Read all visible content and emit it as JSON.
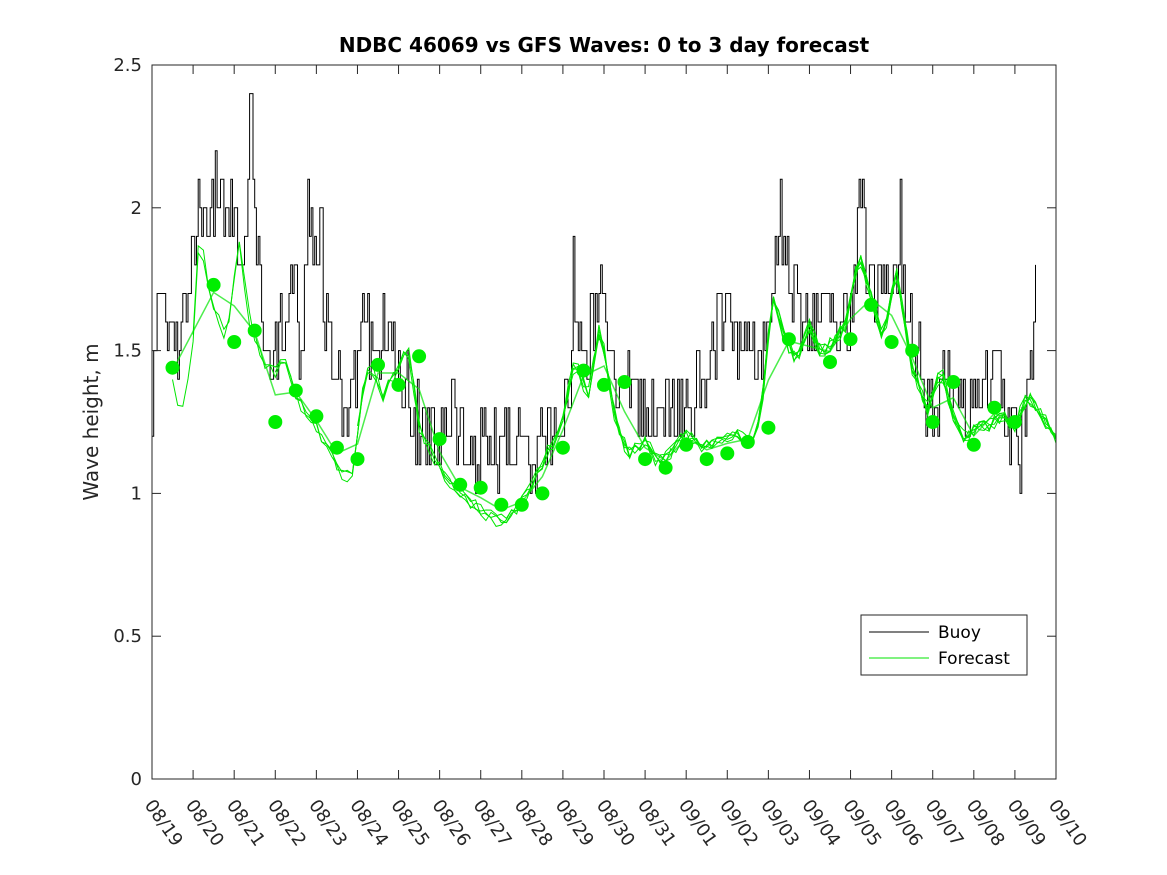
{
  "chart_data": {
    "type": "line",
    "title": "NDBC 46069 vs GFS Waves: 0 to 3 day forecast",
    "xlabel": "",
    "ylabel": "Wave height, m",
    "xlim": [
      0,
      22
    ],
    "ylim": [
      0,
      2.5
    ],
    "yticks": [
      0,
      0.5,
      1,
      1.5,
      2,
      2.5
    ],
    "ytick_labels": [
      "0",
      "0.5",
      "1",
      "1.5",
      "2",
      "2.5"
    ],
    "xtick_labels": [
      "08/19",
      "08/20",
      "08/21",
      "08/22",
      "08/23",
      "08/24",
      "08/25",
      "08/26",
      "08/27",
      "08/28",
      "08/29",
      "08/30",
      "08/31",
      "09/01",
      "09/02",
      "09/03",
      "09/04",
      "09/05",
      "09/06",
      "09/07",
      "09/08",
      "09/09",
      "09/10"
    ],
    "legend": {
      "position": "bottom-right",
      "entries": [
        {
          "label": "Buoy",
          "color": "#000000"
        },
        {
          "label": "Forecast",
          "color": "#00e600"
        }
      ]
    },
    "colors": {
      "buoy": "#000000",
      "forecast": "#00e600",
      "markers": "#00ee00"
    },
    "buoy_anchors": [
      [
        0,
        1.3
      ],
      [
        0.15,
        1.6
      ],
      [
        0.4,
        1.62
      ],
      [
        0.6,
        1.55
      ],
      [
        0.8,
        1.6
      ],
      [
        1.0,
        1.9
      ],
      [
        1.3,
        2.0
      ],
      [
        1.7,
        2.05
      ],
      [
        2.0,
        1.95
      ],
      [
        2.2,
        1.75
      ],
      [
        2.4,
        2.05
      ],
      [
        2.6,
        1.7
      ],
      [
        2.8,
        1.45
      ],
      [
        3.0,
        1.5
      ],
      [
        3.2,
        1.6
      ],
      [
        3.4,
        1.8
      ],
      [
        3.6,
        1.55
      ],
      [
        3.8,
        1.95
      ],
      [
        4.0,
        1.9
      ],
      [
        4.2,
        1.6
      ],
      [
        4.4,
        1.4
      ],
      [
        4.6,
        1.35
      ],
      [
        4.8,
        1.3
      ],
      [
        5.0,
        1.45
      ],
      [
        5.2,
        1.7
      ],
      [
        5.4,
        1.4
      ],
      [
        5.6,
        1.6
      ],
      [
        5.8,
        1.55
      ],
      [
        6.0,
        1.5
      ],
      [
        6.3,
        1.3
      ],
      [
        6.6,
        1.2
      ],
      [
        7.0,
        1.2
      ],
      [
        7.3,
        1.3
      ],
      [
        7.6,
        1.2
      ],
      [
        8.0,
        1.15
      ],
      [
        8.3,
        1.15
      ],
      [
        8.6,
        1.18
      ],
      [
        8.9,
        1.15
      ],
      [
        9.2,
        1.1
      ],
      [
        9.5,
        1.2
      ],
      [
        9.7,
        1.15
      ],
      [
        10.0,
        1.25
      ],
      [
        10.3,
        1.6
      ],
      [
        10.6,
        1.55
      ],
      [
        10.9,
        1.7
      ],
      [
        11.1,
        1.5
      ],
      [
        11.3,
        1.35
      ],
      [
        11.6,
        1.4
      ],
      [
        11.8,
        1.3
      ],
      [
        12.1,
        1.25
      ],
      [
        12.4,
        1.3
      ],
      [
        12.7,
        1.35
      ],
      [
        13.0,
        1.25
      ],
      [
        13.3,
        1.35
      ],
      [
        13.6,
        1.55
      ],
      [
        14.0,
        1.55
      ],
      [
        14.4,
        1.5
      ],
      [
        14.8,
        1.45
      ],
      [
        15.0,
        1.5
      ],
      [
        15.2,
        1.9
      ],
      [
        15.5,
        1.8
      ],
      [
        15.8,
        1.6
      ],
      [
        16.1,
        1.6
      ],
      [
        16.4,
        1.7
      ],
      [
        16.7,
        1.6
      ],
      [
        17.0,
        1.55
      ],
      [
        17.2,
        1.95
      ],
      [
        17.5,
        1.75
      ],
      [
        17.8,
        1.7
      ],
      [
        18.1,
        1.75
      ],
      [
        18.4,
        1.7
      ],
      [
        18.7,
        1.4
      ],
      [
        19.0,
        1.25
      ],
      [
        19.3,
        1.45
      ],
      [
        19.6,
        1.35
      ],
      [
        19.9,
        1.2
      ],
      [
        20.2,
        1.4
      ],
      [
        20.5,
        1.45
      ],
      [
        20.8,
        1.3
      ],
      [
        21.1,
        1.15
      ],
      [
        21.3,
        1.35
      ],
      [
        21.5,
        1.65
      ]
    ],
    "buoy_spikes": [
      [
        2.4,
        2.4
      ],
      [
        1.7,
        2.1
      ],
      [
        4.1,
        2.0
      ],
      [
        10.25,
        1.85
      ],
      [
        15.3,
        2.1
      ],
      [
        17.3,
        2.1
      ],
      [
        18.2,
        2.1
      ]
    ],
    "forecast_anchors": [
      [
        0.5,
        1.42
      ],
      [
        0.7,
        1.28
      ],
      [
        1.0,
        1.55
      ],
      [
        1.15,
        1.92
      ],
      [
        1.4,
        1.72
      ],
      [
        1.8,
        1.55
      ],
      [
        2.1,
        1.9
      ],
      [
        2.4,
        1.6
      ],
      [
        2.7,
        1.48
      ],
      [
        3.0,
        1.44
      ],
      [
        3.2,
        1.5
      ],
      [
        3.5,
        1.35
      ],
      [
        3.8,
        1.28
      ],
      [
        4.1,
        1.22
      ],
      [
        4.4,
        1.15
      ],
      [
        4.7,
        1.06
      ],
      [
        4.9,
        1.1
      ],
      [
        5.1,
        1.35
      ],
      [
        5.3,
        1.48
      ],
      [
        5.6,
        1.35
      ],
      [
        5.9,
        1.42
      ],
      [
        6.2,
        1.55
      ],
      [
        6.5,
        1.25
      ],
      [
        6.8,
        1.15
      ],
      [
        7.2,
        1.05
      ],
      [
        7.6,
        1.0
      ],
      [
        8.0,
        0.95
      ],
      [
        8.4,
        0.92
      ],
      [
        8.8,
        0.94
      ],
      [
        9.2,
        1.02
      ],
      [
        9.6,
        1.15
      ],
      [
        9.9,
        1.22
      ],
      [
        10.3,
        1.48
      ],
      [
        10.6,
        1.35
      ],
      [
        10.9,
        1.6
      ],
      [
        11.3,
        1.25
      ],
      [
        11.6,
        1.15
      ],
      [
        12.0,
        1.2
      ],
      [
        12.3,
        1.12
      ],
      [
        12.6,
        1.15
      ],
      [
        13.0,
        1.22
      ],
      [
        13.4,
        1.18
      ],
      [
        13.8,
        1.2
      ],
      [
        14.2,
        1.22
      ],
      [
        14.5,
        1.2
      ],
      [
        14.8,
        1.25
      ],
      [
        15.1,
        1.72
      ],
      [
        15.4,
        1.55
      ],
      [
        15.7,
        1.48
      ],
      [
        16.0,
        1.6
      ],
      [
        16.3,
        1.5
      ],
      [
        16.6,
        1.55
      ],
      [
        16.9,
        1.6
      ],
      [
        17.2,
        1.85
      ],
      [
        17.5,
        1.7
      ],
      [
        17.8,
        1.55
      ],
      [
        18.1,
        1.8
      ],
      [
        18.5,
        1.45
      ],
      [
        18.9,
        1.3
      ],
      [
        19.2,
        1.45
      ],
      [
        19.5,
        1.28
      ],
      [
        19.8,
        1.2
      ],
      [
        20.1,
        1.25
      ],
      [
        20.4,
        1.25
      ],
      [
        20.7,
        1.28
      ],
      [
        21.0,
        1.25
      ],
      [
        21.3,
        1.35
      ],
      [
        21.6,
        1.3
      ],
      [
        22.0,
        1.2
      ]
    ],
    "forecast_marker_points": [
      [
        0.5,
        1.44
      ],
      [
        1.5,
        1.73
      ],
      [
        2.0,
        1.53
      ],
      [
        2.5,
        1.57
      ],
      [
        3.0,
        1.25
      ],
      [
        3.5,
        1.36
      ],
      [
        4.0,
        1.27
      ],
      [
        4.5,
        1.16
      ],
      [
        5.0,
        1.12
      ],
      [
        5.5,
        1.45
      ],
      [
        6.0,
        1.38
      ],
      [
        6.5,
        1.48
      ],
      [
        7.0,
        1.19
      ],
      [
        7.5,
        1.03
      ],
      [
        8.0,
        1.02
      ],
      [
        8.5,
        0.96
      ],
      [
        9.0,
        0.96
      ],
      [
        9.5,
        1.0
      ],
      [
        10.0,
        1.16
      ],
      [
        10.5,
        1.43
      ],
      [
        11.0,
        1.38
      ],
      [
        11.5,
        1.39
      ],
      [
        12.0,
        1.12
      ],
      [
        12.5,
        1.09
      ],
      [
        13.0,
        1.17
      ],
      [
        13.5,
        1.12
      ],
      [
        14.0,
        1.14
      ],
      [
        14.5,
        1.18
      ],
      [
        15.0,
        1.23
      ],
      [
        15.5,
        1.54
      ],
      [
        16.5,
        1.46
      ],
      [
        17.0,
        1.54
      ],
      [
        17.5,
        1.66
      ],
      [
        18.0,
        1.53
      ],
      [
        18.5,
        1.5
      ],
      [
        19.0,
        1.25
      ],
      [
        19.5,
        1.39
      ],
      [
        20.0,
        1.17
      ],
      [
        20.5,
        1.3
      ],
      [
        21.0,
        1.25
      ]
    ]
  }
}
